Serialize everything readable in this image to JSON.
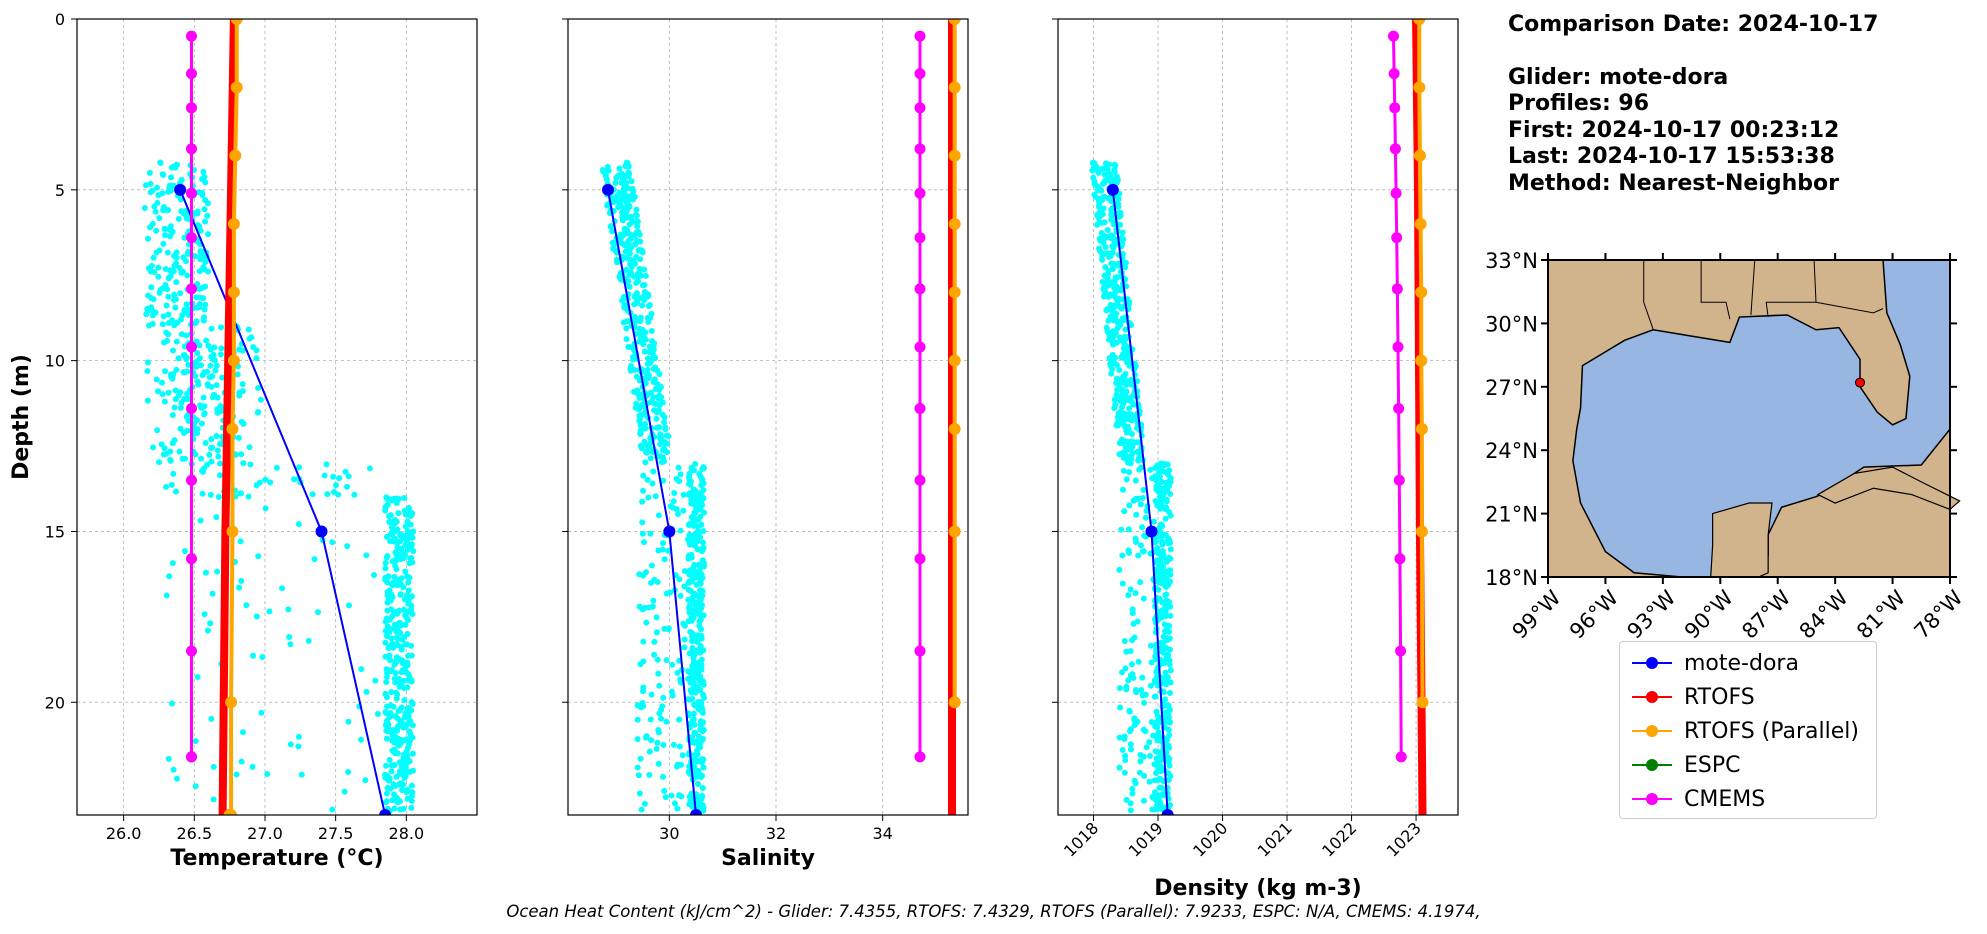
{
  "info": {
    "comparison_date": "Comparison Date: 2024-10-17",
    "glider": "Glider: mote-dora",
    "profiles": "Profiles: 96",
    "first": "First: 2024-10-17 00:23:12",
    "last": "Last: 2024-10-17 15:53:38",
    "method": "Method: Nearest-Neighbor"
  },
  "footer": "Ocean Heat Content (kJ/cm^2) - Glider: 7.4355,  RTOFS: 7.4329,  RTOFS (Parallel): 7.9233,  ESPC: N/A,  CMEMS: 4.1974,",
  "legend": [
    {
      "label": "mote-dora",
      "color": "#0000ff"
    },
    {
      "label": "RTOFS",
      "color": "#ff0000"
    },
    {
      "label": "RTOFS (Parallel)",
      "color": "#ffa500"
    },
    {
      "label": "ESPC",
      "color": "#008000"
    },
    {
      "label": "CMEMS",
      "color": "#ff00ff"
    }
  ],
  "colors": {
    "glider_points": "#00ffff",
    "land": "#d2b48c",
    "ocean": "#97b6e1",
    "marker": "#ff0000"
  },
  "chart_data": [
    {
      "type": "line",
      "xlabel": "Temperature (°C)",
      "ylabel": "Depth (m)",
      "xlim": [
        25.67,
        28.5
      ],
      "ylim": [
        23.3,
        0
      ],
      "xticks": [
        "26.0",
        "26.5",
        "27.0",
        "27.5",
        "28.0"
      ],
      "yticks": [
        "0",
        "5",
        "10",
        "15",
        "20"
      ],
      "grid": true,
      "scatter": {
        "name": "mote-dora raw profiles",
        "x_range": [
          26.15,
          28.05
        ],
        "depth_range": [
          4.2,
          23.2
        ]
      },
      "series": [
        {
          "name": "mote-dora",
          "x": [
            26.4,
            27.4,
            27.85
          ],
          "depth": [
            5,
            15,
            23.3
          ]
        },
        {
          "name": "RTOFS",
          "x": [
            26.78,
            26.76,
            26.74,
            26.72,
            26.7
          ],
          "depth": [
            0,
            5,
            10,
            15,
            23.3
          ]
        },
        {
          "name": "RTOFS (Parallel)",
          "x": [
            26.8,
            26.8,
            26.79,
            26.78,
            26.78,
            26.78,
            26.77,
            26.77,
            26.76,
            26.76,
            26.75,
            26.75
          ],
          "depth": [
            0,
            2,
            4,
            6,
            8,
            10,
            12,
            15,
            20,
            23.3,
            23.3,
            23.3
          ]
        },
        {
          "name": "CMEMS",
          "x": [
            26.48,
            26.48,
            26.48,
            26.48,
            26.48,
            26.48,
            26.48,
            26.48,
            26.48,
            26.48,
            26.48,
            26.48,
            26.48,
            26.48
          ],
          "depth": [
            0.5,
            1.6,
            2.6,
            3.8,
            5.1,
            6.4,
            7.9,
            9.6,
            11.4,
            13.5,
            15.8,
            18.5,
            21.6,
            21.6
          ]
        }
      ]
    },
    {
      "type": "line",
      "xlabel": "Salinity",
      "ylim": [
        23.3,
        0
      ],
      "xlim": [
        28.1,
        35.6
      ],
      "xticks": [
        "30",
        "32",
        "34"
      ],
      "grid": true,
      "scatter": {
        "name": "mote-dora raw profiles",
        "x_range": [
          28.7,
          30.65
        ],
        "depth_range": [
          4.2,
          23.2
        ]
      },
      "series": [
        {
          "name": "mote-dora",
          "x": [
            28.85,
            30.0,
            30.5
          ],
          "depth": [
            5,
            15,
            23.3
          ]
        },
        {
          "name": "RTOFS",
          "x": [
            35.3,
            35.3,
            35.3,
            35.3
          ],
          "depth": [
            0,
            5,
            15,
            23.3
          ]
        },
        {
          "name": "RTOFS (Parallel)",
          "x": [
            35.35,
            35.35,
            35.35,
            35.35,
            35.35,
            35.35,
            35.35,
            35.35,
            35.35
          ],
          "depth": [
            0,
            2,
            4,
            6,
            8,
            10,
            12,
            15,
            20
          ]
        },
        {
          "name": "CMEMS",
          "x": [
            34.7,
            34.7,
            34.7,
            34.7,
            34.7,
            34.7,
            34.7,
            34.7,
            34.7,
            34.7,
            34.7,
            34.7,
            34.7
          ],
          "depth": [
            0.5,
            1.6,
            2.6,
            3.8,
            5.1,
            6.4,
            7.9,
            9.6,
            11.4,
            13.5,
            15.8,
            18.5,
            21.6
          ]
        }
      ]
    },
    {
      "type": "line",
      "xlabel": "Density (kg m-3)",
      "ylim": [
        23.3,
        0
      ],
      "xlim": [
        1017.45,
        1023.65
      ],
      "xticks": [
        "1018",
        "1019",
        "1020",
        "1021",
        "1022",
        "1023"
      ],
      "grid": true,
      "scatter": {
        "name": "mote-dora raw profiles",
        "x_range": [
          1017.95,
          1019.2
        ],
        "depth_range": [
          4.2,
          23.2
        ]
      },
      "series": [
        {
          "name": "mote-dora",
          "x": [
            1018.3,
            1018.9,
            1019.15
          ],
          "depth": [
            5,
            15,
            23.3
          ]
        },
        {
          "name": "RTOFS",
          "x": [
            1023.0,
            1023.03,
            1023.06,
            1023.1
          ],
          "depth": [
            0,
            5,
            15,
            23.3
          ]
        },
        {
          "name": "RTOFS (Parallel)",
          "x": [
            1023.05,
            1023.05,
            1023.06,
            1023.07,
            1023.08,
            1023.08,
            1023.09,
            1023.09,
            1023.1
          ],
          "depth": [
            0,
            2,
            4,
            6,
            8,
            10,
            12,
            15,
            20
          ]
        },
        {
          "name": "CMEMS",
          "x": [
            1022.65,
            1022.66,
            1022.67,
            1022.68,
            1022.69,
            1022.7,
            1022.71,
            1022.72,
            1022.73,
            1022.74,
            1022.75,
            1022.76,
            1022.77
          ],
          "depth": [
            0.5,
            1.6,
            2.6,
            3.8,
            5.1,
            6.4,
            7.9,
            9.6,
            11.4,
            13.5,
            15.8,
            18.5,
            21.6
          ]
        }
      ]
    }
  ],
  "map": {
    "lat_ticks": [
      "33°N",
      "30°N",
      "27°N",
      "24°N",
      "21°N",
      "18°N"
    ],
    "lon_ticks": [
      "99°W",
      "96°W",
      "93°W",
      "90°W",
      "87°W",
      "84°W",
      "81°W",
      "78°W"
    ],
    "lat_range": [
      18,
      33
    ],
    "lon_range": [
      -99,
      -78
    ],
    "glider_position": {
      "lat": 27.2,
      "lon": -82.7
    }
  }
}
